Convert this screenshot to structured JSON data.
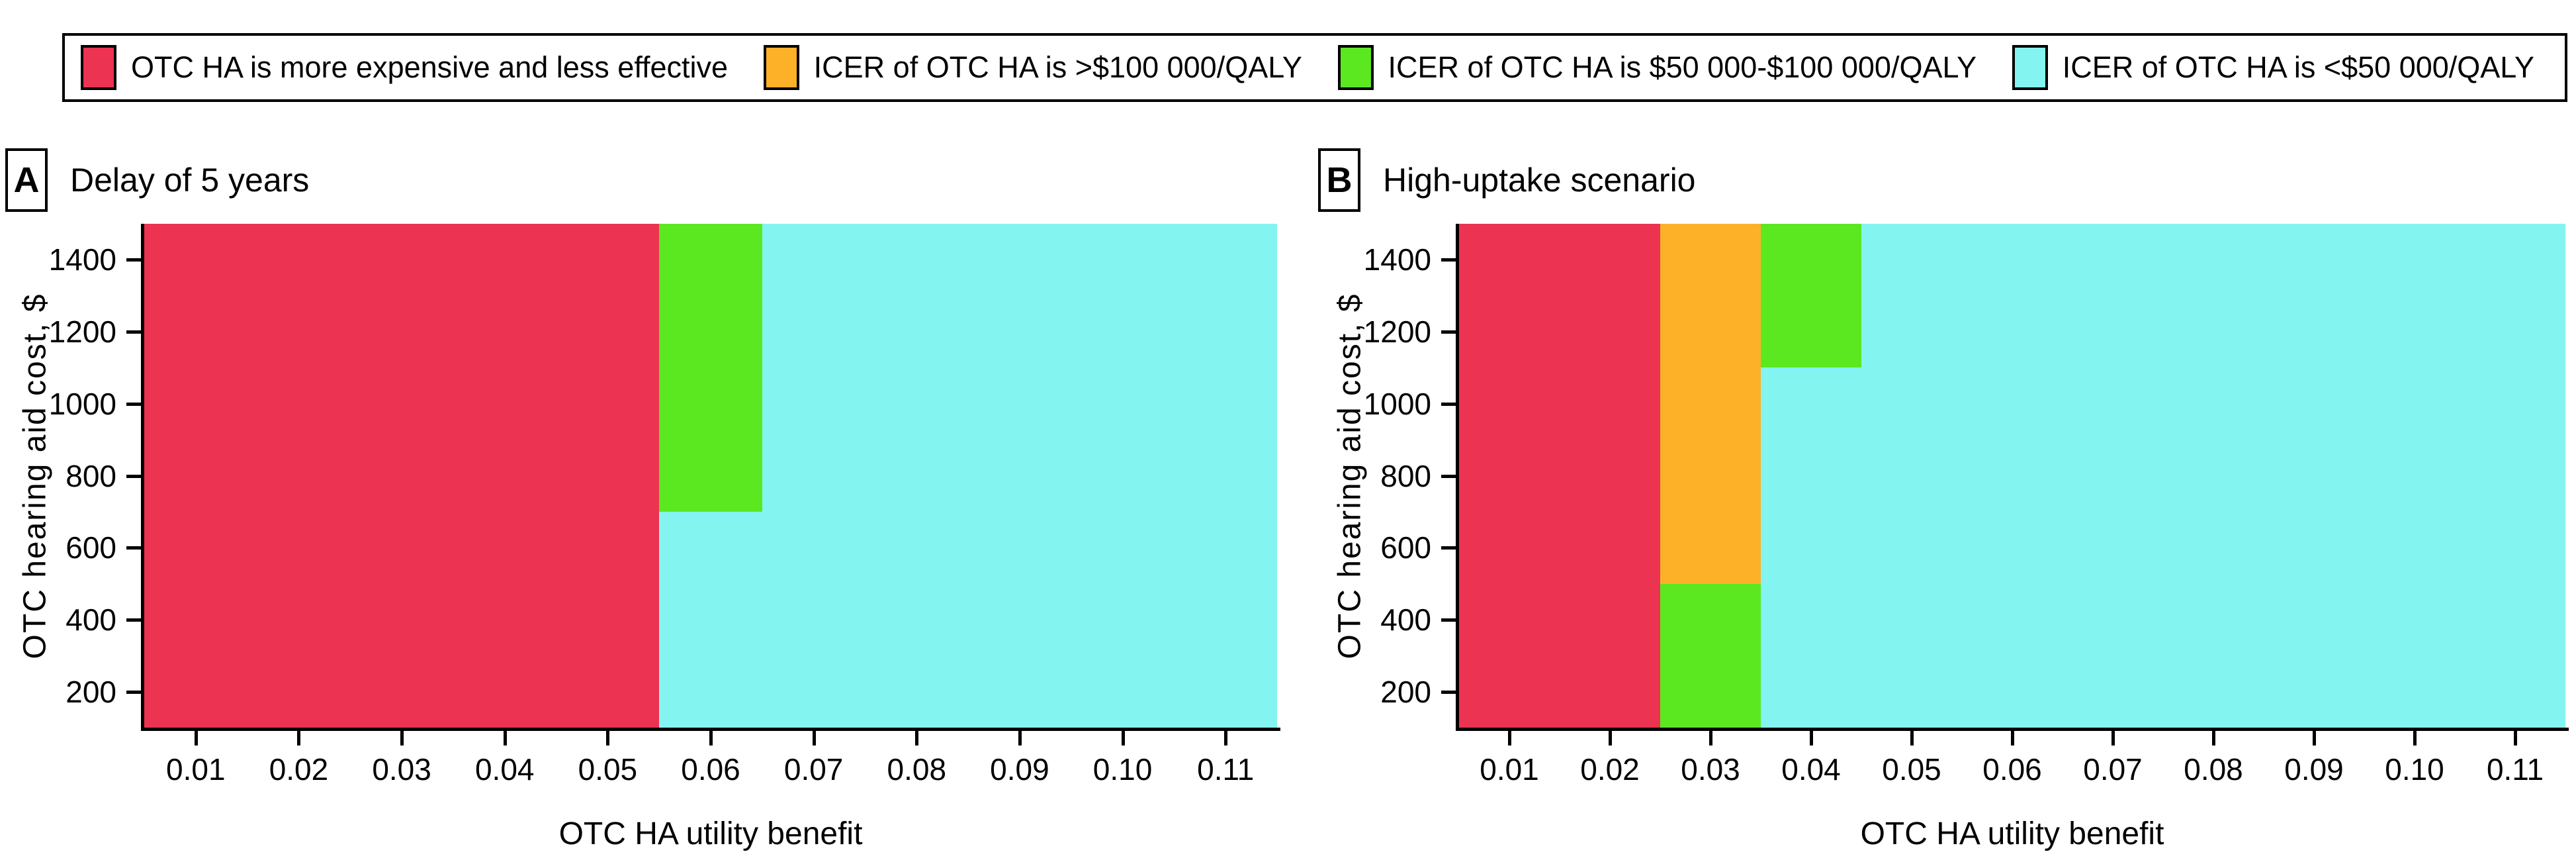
{
  "colors": {
    "red": "#EC3352",
    "orange": "#FDB128",
    "green": "#5CE821",
    "cyan": "#84F4F1",
    "axis": "#000000"
  },
  "legend": {
    "items": [
      {
        "color": "red",
        "label": "OTC HA is more expensive and less effective"
      },
      {
        "color": "orange",
        "label": "ICER of OTC HA is >$100 000/QALY"
      },
      {
        "color": "green",
        "label": "ICER of OTC HA is $50 000-$100 000/QALY"
      },
      {
        "color": "cyan",
        "label": "ICER of OTC HA is <$50 000/QALY"
      }
    ]
  },
  "panels": [
    {
      "tag": "A",
      "title": "Delay of 5 years"
    },
    {
      "tag": "B",
      "title": "High-uptake scenario"
    }
  ],
  "chart_data": [
    {
      "type": "heatmap",
      "panel": "A",
      "title": "Delay of 5 years",
      "xlabel": "OTC HA utility benefit",
      "ylabel": "OTC hearing aid cost, $",
      "xlim": [
        0.005,
        0.115
      ],
      "ylim": [
        100,
        1500
      ],
      "xticks": [
        0.01,
        0.02,
        0.03,
        0.04,
        0.05,
        0.06,
        0.07,
        0.08,
        0.09,
        0.1,
        0.11
      ],
      "xtick_labels": [
        "0.01",
        "0.02",
        "0.03",
        "0.04",
        "0.05",
        "0.06",
        "0.07",
        "0.08",
        "0.09",
        "0.10",
        "0.11"
      ],
      "yticks": [
        200,
        400,
        600,
        800,
        1000,
        1200,
        1400
      ],
      "ytick_labels": [
        "200",
        "400",
        "600",
        "800",
        "1000",
        "1200",
        "1400"
      ],
      "background": "cyan",
      "background_meaning": "ICER of OTC HA is <$50 000/QALY",
      "regions": [
        {
          "category": "red",
          "meaning": "OTC HA is more expensive and less effective",
          "x": [
            0.005,
            0.055
          ],
          "y": [
            100,
            1500
          ]
        },
        {
          "category": "green",
          "meaning": "ICER of OTC HA is $50 000-$100 000/QALY",
          "x": [
            0.055,
            0.065
          ],
          "y": [
            700,
            1500
          ]
        }
      ]
    },
    {
      "type": "heatmap",
      "panel": "B",
      "title": "High-uptake scenario",
      "xlabel": "OTC HA utility benefit",
      "ylabel": "OTC hearing aid cost, $",
      "xlim": [
        0.005,
        0.115
      ],
      "ylim": [
        100,
        1500
      ],
      "xticks": [
        0.01,
        0.02,
        0.03,
        0.04,
        0.05,
        0.06,
        0.07,
        0.08,
        0.09,
        0.1,
        0.11
      ],
      "xtick_labels": [
        "0.01",
        "0.02",
        "0.03",
        "0.04",
        "0.05",
        "0.06",
        "0.07",
        "0.08",
        "0.09",
        "0.10",
        "0.11"
      ],
      "yticks": [
        200,
        400,
        600,
        800,
        1000,
        1200,
        1400
      ],
      "ytick_labels": [
        "200",
        "400",
        "600",
        "800",
        "1000",
        "1200",
        "1400"
      ],
      "background": "cyan",
      "background_meaning": "ICER of OTC HA is <$50 000/QALY",
      "regions": [
        {
          "category": "red",
          "meaning": "OTC HA is more expensive and less effective",
          "x": [
            0.005,
            0.025
          ],
          "y": [
            100,
            1500
          ]
        },
        {
          "category": "orange",
          "meaning": "ICER of OTC HA is >$100 000/QALY",
          "x": [
            0.025,
            0.035
          ],
          "y": [
            500,
            1500
          ]
        },
        {
          "category": "green",
          "meaning": "ICER of OTC HA is $50 000-$100 000/QALY",
          "x": [
            0.025,
            0.035
          ],
          "y": [
            100,
            500
          ]
        },
        {
          "category": "green",
          "meaning": "ICER of OTC HA is $50 000-$100 000/QALY",
          "x": [
            0.035,
            0.045
          ],
          "y": [
            1100,
            1500
          ]
        }
      ]
    }
  ]
}
